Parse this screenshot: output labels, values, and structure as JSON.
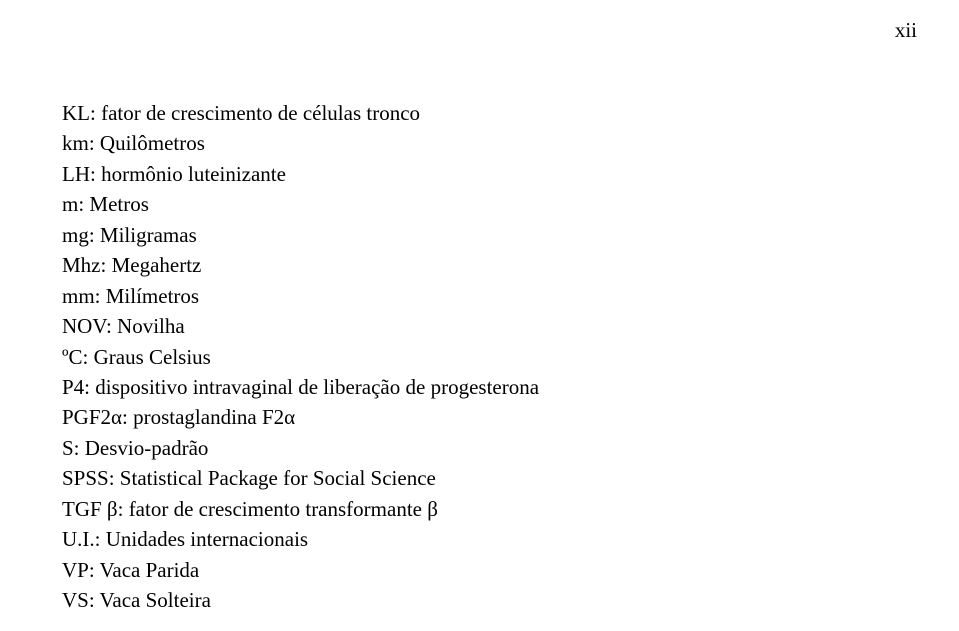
{
  "page_number": "xii",
  "lines": [
    "KL: fator de crescimento de células tronco",
    "km: Quilômetros",
    "LH: hormônio luteinizante",
    "m: Metros",
    "mg: Miligramas",
    "Mhz: Megahertz",
    "mm: Milímetros",
    "NOV: Novilha",
    "ºC: Graus Celsius",
    "P4: dispositivo intravaginal de liberação de progesterona",
    "PGF2α: prostaglandina F2α",
    "S: Desvio-padrão",
    "SPSS: Statistical Package for Social Science",
    "TGF β: fator de crescimento transformante β",
    "U.I.: Unidades internacionais",
    "VP: Vaca Parida",
    "VS: Vaca Solteira"
  ],
  "styles": {
    "font_family": "Times New Roman",
    "font_size_pt": 16,
    "text_color": "#000000",
    "background_color": "#ffffff",
    "line_height": 1.45
  }
}
